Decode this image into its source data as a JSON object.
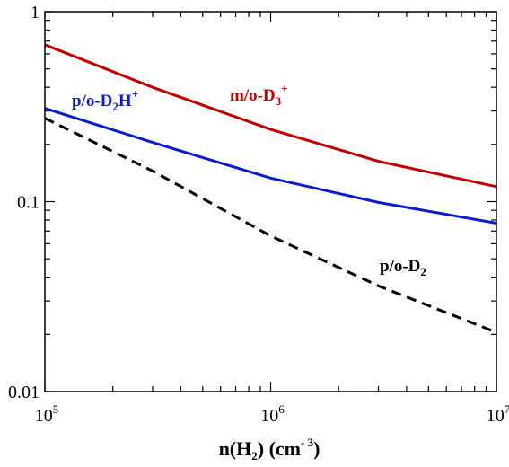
{
  "chart_data": {
    "type": "line",
    "title": "",
    "x_scale": "log",
    "y_scale": "log",
    "xlim": [
      100000,
      10000000
    ],
    "ylim": [
      0.01,
      1
    ],
    "grid": false,
    "xlabel": {
      "base": "n(H",
      "sub": "2",
      "mid": ")  (cm",
      "sup": "- 3",
      "end": ")"
    },
    "x_ticks": [
      {
        "value": 100000,
        "base": "10",
        "exp": "5"
      },
      {
        "value": 1000000,
        "base": "10",
        "exp": "6"
      },
      {
        "value": 10000000,
        "base": "10",
        "exp": "7"
      }
    ],
    "y_ticks": [
      {
        "value": 0.01,
        "label": "0.01"
      },
      {
        "value": 0.1,
        "label": "0.1"
      },
      {
        "value": 1,
        "label": "1"
      }
    ],
    "series": [
      {
        "name": "m/o-D3+",
        "label_parts": {
          "base": "m/o-D",
          "sub": "3",
          "sup": "+"
        },
        "color": "#c00000",
        "dash": "solid",
        "x": [
          100000,
          300000,
          1000000,
          3000000,
          10000000
        ],
        "y": [
          0.67,
          0.4,
          0.24,
          0.163,
          0.12
        ]
      },
      {
        "name": "p/o-D2H+",
        "label_parts": {
          "base": "p/o-D",
          "sub": "2",
          "mid": "H",
          "sup": "+"
        },
        "color": "#0a1ec8",
        "dash": "solid",
        "x": [
          100000,
          300000,
          1000000,
          3000000,
          10000000
        ],
        "y": [
          0.31,
          0.205,
          0.133,
          0.099,
          0.077
        ]
      },
      {
        "name": "p/o-D2",
        "label_parts": {
          "base": "p/o-D",
          "sub": "2"
        },
        "color": "#000000",
        "dash": "dashed",
        "x": [
          100000,
          300000,
          1000000,
          3000000,
          10000000
        ],
        "y": [
          0.275,
          0.145,
          0.066,
          0.036,
          0.0205
        ]
      }
    ]
  }
}
